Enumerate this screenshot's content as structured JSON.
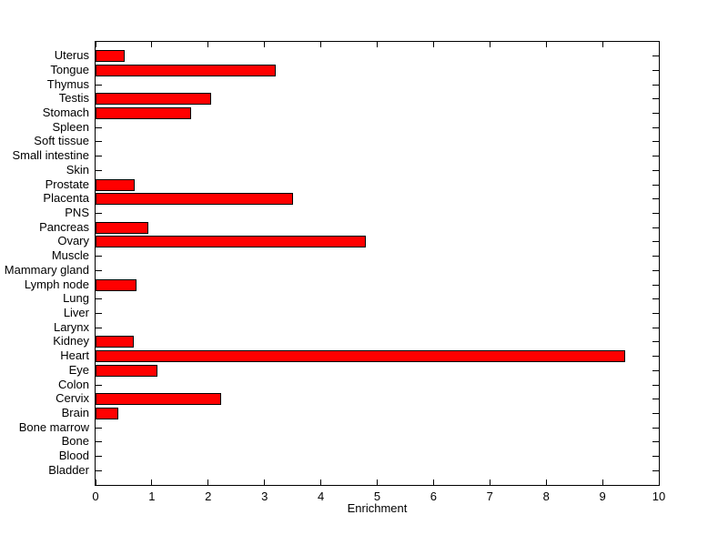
{
  "figure": {
    "background": "#FFFFFF"
  },
  "chart_data": {
    "type": "bar",
    "orientation": "horizontal",
    "title": "",
    "xlabel": "Enrichment",
    "ylabel": "",
    "xlim": [
      0,
      10
    ],
    "xticks": [
      "0",
      "1",
      "2",
      "3",
      "4",
      "5",
      "6",
      "7",
      "8",
      "9",
      "10"
    ],
    "grid": false,
    "legend": false,
    "bar_color": "#FF0000",
    "bar_edge_color": "#000000",
    "axis_color": "#000000",
    "categories": [
      "Uterus",
      "Tongue",
      "Thymus",
      "Testis",
      "Stomach",
      "Spleen",
      "Soft tissue",
      "Small intestine",
      "Skin",
      "Prostate",
      "Placenta",
      "PNS",
      "Pancreas",
      "Ovary",
      "Muscle",
      "Mammary gland",
      "Lymph node",
      "Lung",
      "Liver",
      "Larynx",
      "Kidney",
      "Heart",
      "Eye",
      "Colon",
      "Cervix",
      "Brain",
      "Bone marrow",
      "Bone",
      "Blood",
      "Bladder"
    ],
    "values": [
      0.52,
      3.2,
      0,
      2.05,
      1.7,
      0,
      0,
      0,
      0,
      0.7,
      3.5,
      0,
      0.93,
      4.8,
      0,
      0,
      0.73,
      0,
      0,
      0,
      0.68,
      9.4,
      1.1,
      0,
      2.23,
      0.4,
      0,
      0,
      0,
      0
    ]
  }
}
